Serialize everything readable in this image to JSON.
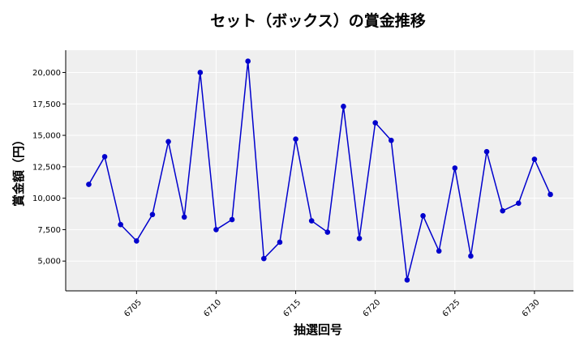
{
  "chart_data": {
    "type": "line",
    "title": "セット（ボックス）の賞金推移",
    "xlabel": "抽選回号",
    "ylabel": "賞金額（円）",
    "x": [
      6702,
      6703,
      6704,
      6705,
      6706,
      6707,
      6708,
      6709,
      6710,
      6711,
      6712,
      6713,
      6714,
      6715,
      6716,
      6717,
      6718,
      6719,
      6720,
      6721,
      6722,
      6723,
      6724,
      6725,
      6726,
      6727,
      6728,
      6729,
      6730,
      6731
    ],
    "series": [
      {
        "values": [
          11100,
          13300,
          7900,
          6600,
          8700,
          14500,
          8500,
          20000,
          7500,
          8300,
          20900,
          5200,
          6500,
          14700,
          8200,
          7300,
          17300,
          6800,
          16000,
          14600,
          3500,
          8600,
          5800,
          12400,
          5400,
          13700,
          9000,
          9600,
          13100,
          10300
        ]
      }
    ],
    "xticks": [
      6705,
      6710,
      6715,
      6720,
      6725,
      6730
    ],
    "xtick_labels": [
      "6705",
      "6710",
      "6715",
      "6720",
      "6725",
      "6730"
    ],
    "yticks": [
      5000,
      7500,
      10000,
      12500,
      15000,
      17500,
      20000
    ],
    "ytick_labels": [
      "5,000",
      "7,500",
      "10,000",
      "12,500",
      "15,000",
      "17,500",
      "20,000"
    ],
    "xlim": [
      6700.55,
      6732.45
    ],
    "ylim": [
      2630,
      21770
    ],
    "grid": true,
    "colors": {
      "line": "#0000cd",
      "marker": "#0000cd",
      "plot_bg": "#efefef",
      "grid": "#ffffff"
    }
  }
}
